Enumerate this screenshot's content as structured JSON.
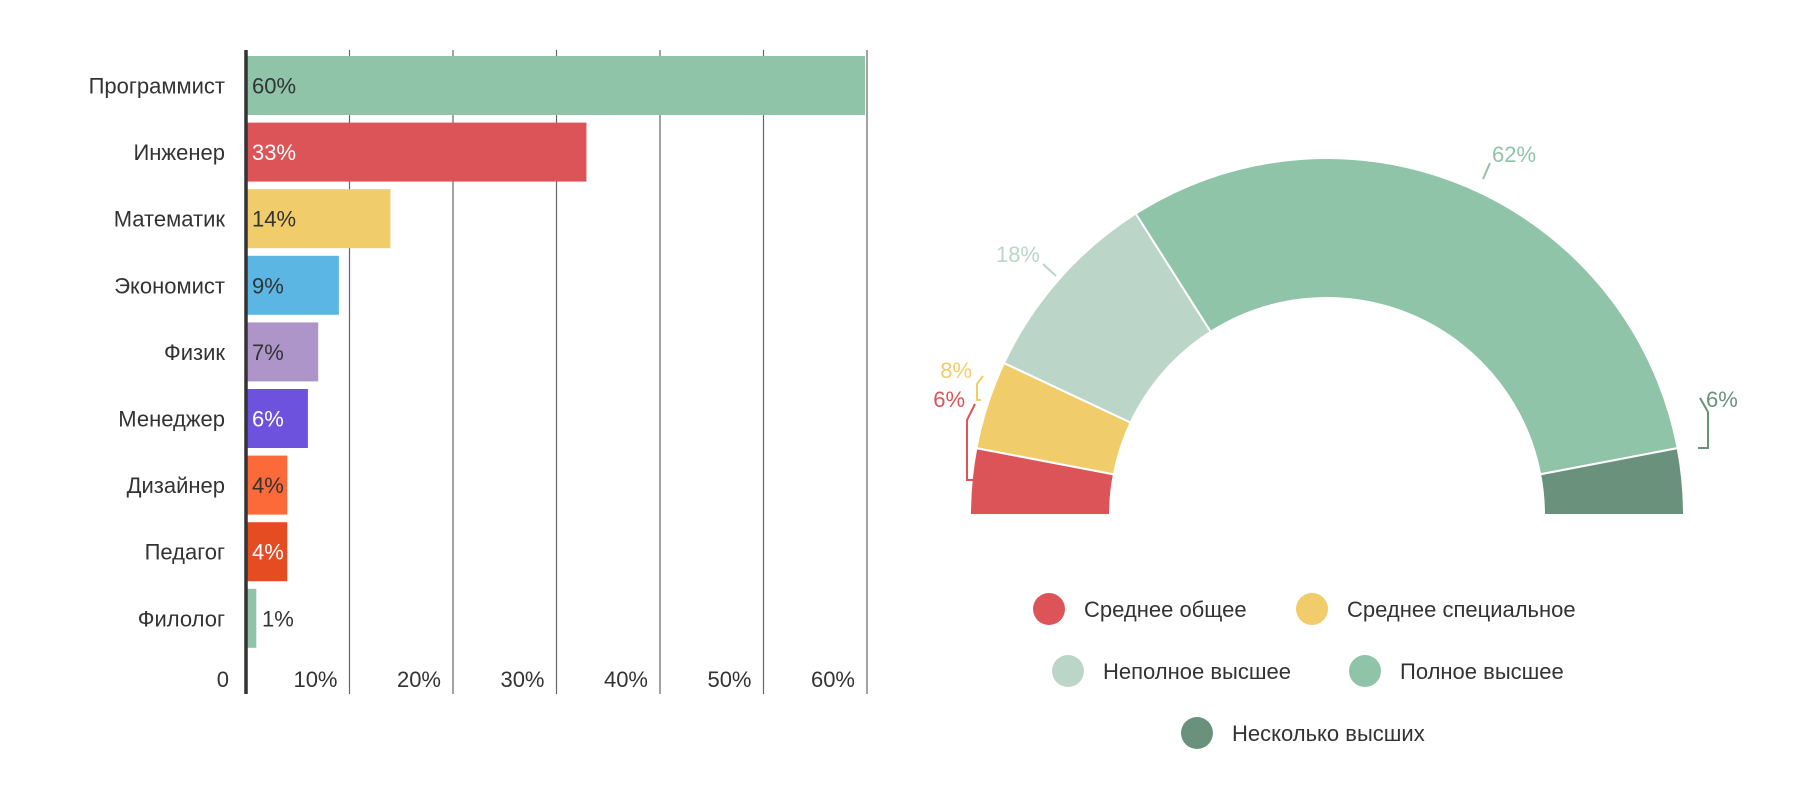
{
  "chart_data": [
    {
      "type": "bar",
      "orientation": "horizontal",
      "categories": [
        "Программист",
        "Инженер",
        "Математик",
        "Экономист",
        "Физик",
        "Менеджер",
        "Дизайнер",
        "Педагог",
        "Филолог"
      ],
      "values": [
        60,
        33,
        14,
        9,
        7,
        6,
        4,
        4,
        1
      ],
      "value_labels": [
        "60%",
        "33%",
        "14%",
        "9%",
        "7%",
        "6%",
        "4%",
        "4%",
        "1%"
      ],
      "colors": [
        "#8fc4a8",
        "#dc5458",
        "#f0cc6a",
        "#5cb6e4",
        "#ae95c9",
        "#6c52dd",
        "#fd6a3a",
        "#e64c21",
        "#8fc4a8"
      ],
      "label_colors": [
        "#333333",
        "#ffffff",
        "#333333",
        "#333333",
        "#333333",
        "#ffffff",
        "#333333",
        "#ffffff",
        "#333333"
      ],
      "xlim": [
        0,
        60
      ],
      "tick_labels": [
        "0",
        "10%",
        "20%",
        "30%",
        "40%",
        "50%",
        "60%"
      ],
      "grid": true
    },
    {
      "type": "pie",
      "variant": "half-donut",
      "labels": [
        "Среднее общее",
        "Среднее специальное",
        "Неполное высшее",
        "Полное высшее",
        "Несколько высших"
      ],
      "values": [
        6,
        8,
        18,
        62,
        6
      ],
      "value_labels": [
        "6%",
        "8%",
        "18%",
        "62%",
        "6%"
      ],
      "colors": [
        "#dc5458",
        "#f0cc6a",
        "#bbd6c8",
        "#8fc4a8",
        "#6a917b"
      ],
      "legend": "bottom"
    }
  ]
}
